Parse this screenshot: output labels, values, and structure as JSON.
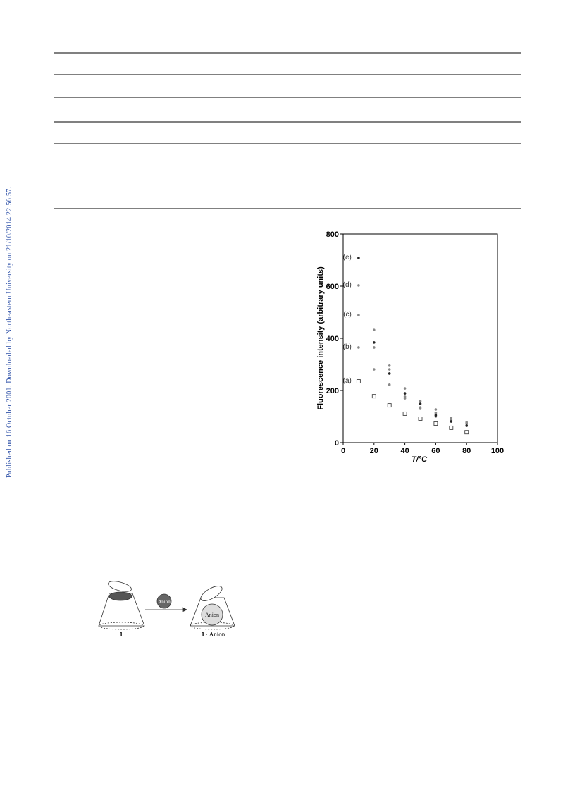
{
  "watermark": "Published on 16 October 2001. Downloaded by Northeastern University on 21/10/2014 22:56:57.",
  "chart_data": {
    "type": "scatter",
    "x_label": "T/°C",
    "y_label": "Fluorescence intensity (arbitrary units)",
    "xlim": [
      0,
      100
    ],
    "xticks": [
      0,
      20,
      40,
      60,
      80,
      100
    ],
    "ylim": [
      0,
      800
    ],
    "yticks": [
      0,
      200,
      400,
      600,
      800
    ],
    "x": [
      10,
      20,
      30,
      40,
      50,
      60,
      70,
      80
    ],
    "series": [
      {
        "name": "(a)",
        "color": "#444444",
        "marker": "square",
        "values": [
          235,
          178,
          143,
          111,
          92,
          73,
          57,
          40
        ]
      },
      {
        "name": "(b)",
        "color": "#888888",
        "marker": "circle",
        "values": [
          365,
          281,
          222,
          170,
          130,
          100,
          85,
          73
        ]
      },
      {
        "name": "(c)",
        "color": "#888888",
        "marker": "circle",
        "values": [
          489,
          365,
          281,
          176,
          135,
          114,
          89,
          73
        ]
      },
      {
        "name": "(d)",
        "color": "#888888",
        "marker": "circle",
        "values": [
          603,
          432,
          295,
          208,
          159,
          127,
          95,
          78
        ]
      },
      {
        "name": "(e)",
        "color": "#222222",
        "marker": "circle",
        "values": [
          708,
          384,
          265,
          189,
          149,
          105,
          81,
          65
        ]
      }
    ]
  },
  "scheme": {
    "reagent": "Anion",
    "bound": "Anion",
    "left_caption": "1",
    "right_caption_number": "1",
    "right_caption_text": "· Anion"
  }
}
